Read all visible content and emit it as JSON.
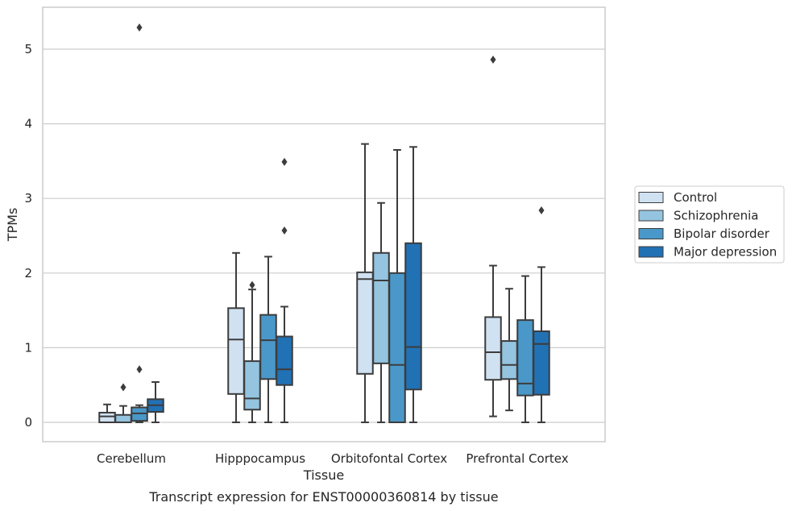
{
  "chart_data": {
    "type": "box",
    "title": "",
    "caption": "Transcript expression for ENST00000360814 by tissue",
    "xlabel": "Tissue",
    "ylabel": "TPMs",
    "ylim": [
      -0.25,
      5.57
    ],
    "yticks": [
      0,
      1,
      2,
      3,
      4,
      5
    ],
    "grid": "horizontal",
    "legend_position": "right",
    "categories": [
      "Cerebellum",
      "Hipppocampus",
      "Orbitofontal Cortex",
      "Prefrontal Cortex"
    ],
    "series": [
      {
        "name": "Control",
        "color": "#d0e1f2",
        "boxes": [
          {
            "whislo": 0.0,
            "q1": 0.0,
            "med": 0.08,
            "q3": 0.13,
            "whishi": 0.24,
            "fliers": []
          },
          {
            "whislo": 0.0,
            "q1": 0.38,
            "med": 1.11,
            "q3": 1.53,
            "whishi": 2.27,
            "fliers": []
          },
          {
            "whislo": 0.0,
            "q1": 0.65,
            "med": 1.92,
            "q3": 2.01,
            "whishi": 3.73,
            "fliers": []
          },
          {
            "whislo": 0.08,
            "q1": 0.57,
            "med": 0.94,
            "q3": 1.41,
            "whishi": 2.1,
            "fliers": [
              4.86
            ]
          }
        ]
      },
      {
        "name": "Schizophrenia",
        "color": "#94c4df",
        "boxes": [
          {
            "whislo": 0.0,
            "q1": 0.0,
            "med": 0.0,
            "q3": 0.1,
            "whishi": 0.22,
            "fliers": [
              0.47
            ]
          },
          {
            "whislo": 0.0,
            "q1": 0.17,
            "med": 0.32,
            "q3": 0.82,
            "whishi": 1.78,
            "fliers": [
              1.84
            ]
          },
          {
            "whislo": 0.0,
            "q1": 0.79,
            "med": 1.9,
            "q3": 2.27,
            "whishi": 2.94,
            "fliers": []
          },
          {
            "whislo": 0.16,
            "q1": 0.58,
            "med": 0.77,
            "q3": 1.09,
            "whishi": 1.79,
            "fliers": []
          }
        ]
      },
      {
        "name": "Bipolar disorder",
        "color": "#4a98c9",
        "boxes": [
          {
            "whislo": 0.0,
            "q1": 0.02,
            "med": 0.12,
            "q3": 0.2,
            "whishi": 0.23,
            "fliers": [
              0.71,
              5.29
            ]
          },
          {
            "whislo": 0.0,
            "q1": 0.58,
            "med": 1.1,
            "q3": 1.44,
            "whishi": 2.22,
            "fliers": []
          },
          {
            "whislo": 0.0,
            "q1": 0.0,
            "med": 0.77,
            "q3": 2.0,
            "whishi": 3.65,
            "fliers": []
          },
          {
            "whislo": 0.0,
            "q1": 0.36,
            "med": 0.52,
            "q3": 1.37,
            "whishi": 1.96,
            "fliers": []
          }
        ]
      },
      {
        "name": "Major depression",
        "color": "#2171b5",
        "boxes": [
          {
            "whislo": 0.0,
            "q1": 0.14,
            "med": 0.23,
            "q3": 0.31,
            "whishi": 0.54,
            "fliers": []
          },
          {
            "whislo": 0.0,
            "q1": 0.5,
            "med": 0.71,
            "q3": 1.15,
            "whishi": 1.55,
            "fliers": [
              2.57,
              3.49
            ]
          },
          {
            "whislo": 0.0,
            "q1": 0.44,
            "med": 1.01,
            "q3": 2.4,
            "whishi": 3.69,
            "fliers": []
          },
          {
            "whislo": 0.0,
            "q1": 0.37,
            "med": 1.05,
            "q3": 1.22,
            "whishi": 2.08,
            "fliers": [
              2.84
            ]
          }
        ]
      }
    ]
  }
}
